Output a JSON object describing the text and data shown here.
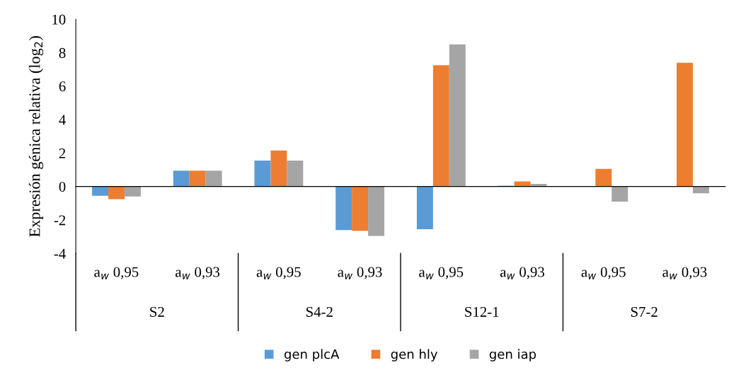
{
  "chart_data": {
    "type": "bar",
    "ylabel": "Expresión génica relativa (log$_{2}$)",
    "categories": [
      "a$_{w}$ 0,95",
      "a$_{w}$ 0,93",
      "a$_{w}$ 0,95",
      "a$_{w}$ 0,93",
      "a$_{w}$ 0,95",
      "a$_{w}$ 0,93",
      "a$_{w}$ 0,95",
      "a$_{w}$ 0,93"
    ],
    "annotations": [
      "S2",
      "S4-2",
      "S12-1",
      "S7-2"
    ],
    "series": [
      {
        "name": "gen plcA",
        "color": "#5b9bd5",
        "values": [
          -0.55,
          0.95,
          1.55,
          -2.6,
          -2.55,
          0.05,
          0,
          0
        ]
      },
      {
        "name": "gen hly",
        "color": "#ed7d31",
        "values": [
          -0.75,
          0.95,
          2.15,
          -2.65,
          7.25,
          0.3,
          1.05,
          7.4
        ]
      },
      {
        "name": "gen iap",
        "color": "#a5a5a5",
        "values": [
          -0.6,
          0.95,
          1.55,
          -2.95,
          8.5,
          0.15,
          -0.9,
          -0.4
        ]
      }
    ],
    "ylim": [
      -4,
      10
    ],
    "yticks": [
      -4,
      -2,
      0,
      2,
      4,
      6,
      8,
      10
    ],
    "legend": "bottom"
  }
}
